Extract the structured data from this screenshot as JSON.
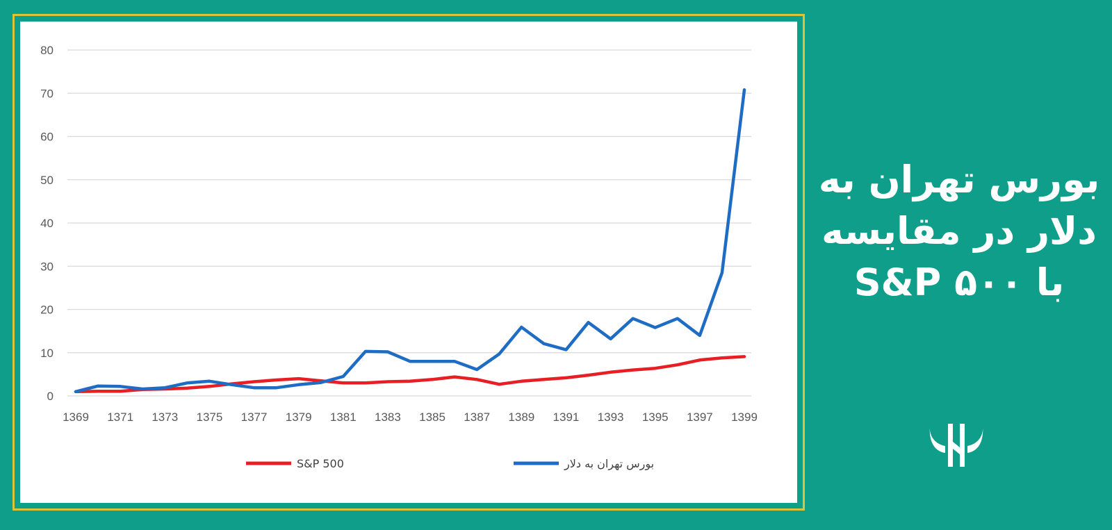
{
  "headline": {
    "line1": "بورس تهران به",
    "line2": "دلار در مقایسه",
    "line3": "با ۵۰۰ S&P"
  },
  "logo_icon": "bull-horns-logo-icon",
  "colors": {
    "background": "#0e9e8a",
    "frame_border": "#d9c53a",
    "series_sp500": "#e81e25",
    "series_tehran": "#1f6cc4",
    "gridline": "#d9d9d9"
  },
  "chart_data": {
    "type": "line",
    "title": "",
    "xlabel": "",
    "ylabel": "",
    "ylim": [
      0,
      80
    ],
    "yticks": [
      0,
      10,
      20,
      30,
      40,
      50,
      60,
      70,
      80
    ],
    "x": [
      1369,
      1370,
      1371,
      1372,
      1373,
      1374,
      1375,
      1376,
      1377,
      1378,
      1379,
      1380,
      1381,
      1382,
      1383,
      1384,
      1385,
      1386,
      1387,
      1388,
      1389,
      1390,
      1391,
      1392,
      1393,
      1394,
      1395,
      1396,
      1397,
      1398,
      1399
    ],
    "xtick_labels": [
      "1369",
      "1371",
      "1373",
      "1375",
      "1377",
      "1379",
      "1381",
      "1383",
      "1385",
      "1387",
      "1389",
      "1391",
      "1393",
      "1395",
      "1397",
      "1399"
    ],
    "grid": true,
    "legend_position": "bottom",
    "series": [
      {
        "name": "S&P 500",
        "color": "#e81e25",
        "values": [
          1,
          1.1,
          1.1,
          1.5,
          1.6,
          1.8,
          2.2,
          2.8,
          3.3,
          3.7,
          4,
          3.5,
          3,
          3,
          3.3,
          3.4,
          3.8,
          4.4,
          3.8,
          2.7,
          3.4,
          3.8,
          4.2,
          4.8,
          5.5,
          6,
          6.4,
          7.2,
          8.3,
          8.8,
          9.1
        ]
      },
      {
        "name": "بورس تهران به دلار",
        "color": "#1f6cc4",
        "values": [
          1,
          2.3,
          2.2,
          1.6,
          1.9,
          3,
          3.4,
          2.6,
          1.9,
          1.9,
          2.6,
          3.1,
          4.5,
          10.3,
          10.2,
          8,
          8,
          8,
          6.1,
          9.7,
          15.9,
          12.1,
          10.7,
          17,
          13.2,
          17.9,
          15.8,
          17.9,
          14,
          28.5,
          70.8
        ]
      }
    ]
  }
}
